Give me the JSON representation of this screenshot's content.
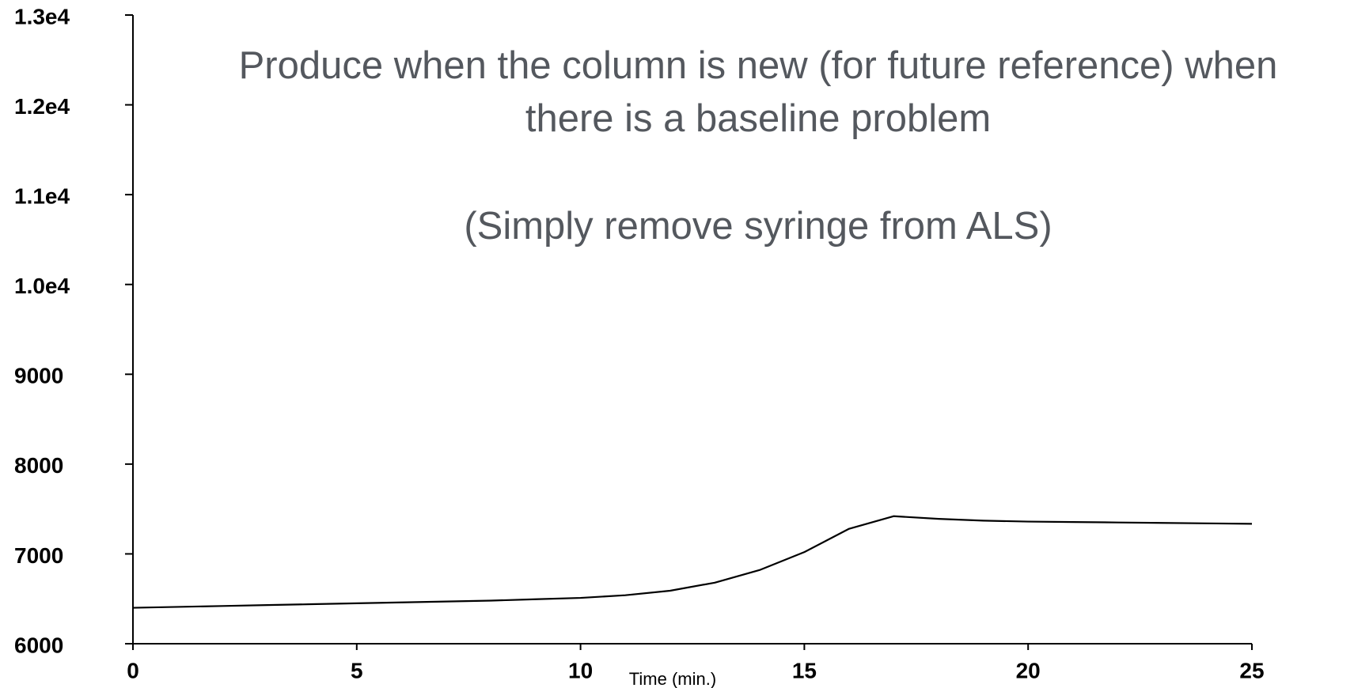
{
  "chart_data": {
    "type": "line",
    "annotations": [
      "Produce when the column is new (for future reference) when",
      "there is a baseline problem",
      "(Simply remove syringe from ALS)"
    ],
    "xlabel": "Time (min.)",
    "x": [
      0,
      1,
      2,
      3,
      4,
      5,
      6,
      7,
      8,
      9,
      10,
      11,
      12,
      13,
      14,
      15,
      16,
      17,
      18,
      19,
      20,
      21,
      22,
      23,
      24,
      25
    ],
    "series": [
      {
        "color": "#000000",
        "values": [
          6400,
          6410,
          6420,
          6430,
          6440,
          6450,
          6460,
          6470,
          6480,
          6495,
          6510,
          6540,
          6590,
          6680,
          6820,
          7020,
          7280,
          7420,
          7390,
          7370,
          7360,
          7355,
          7350,
          7345,
          7340,
          7335
        ]
      }
    ],
    "xlim": [
      0,
      25
    ],
    "xticks": [
      0,
      5,
      10,
      15,
      20,
      25
    ],
    "ylim": [
      6000,
      13000
    ],
    "yticks": [
      6000,
      7000,
      8000,
      9000,
      {
        "value": 10000,
        "label": "1.0e4"
      },
      {
        "value": 11000,
        "label": "1.1e4"
      },
      {
        "value": 12000,
        "label": "1.2e4"
      },
      {
        "value": 13000,
        "label": "1.3e4"
      }
    ]
  }
}
